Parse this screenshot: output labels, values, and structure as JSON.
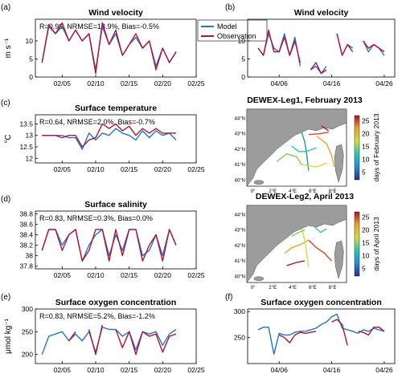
{
  "colors": {
    "model": "#1f77c4",
    "observation": "#b5123a",
    "land": "#9c9c9c"
  },
  "legend": {
    "model_label": "Model",
    "observation_label": "Observation"
  },
  "chart_data": [
    {
      "panel": "(a)",
      "type": "line",
      "title": "Wind velocity",
      "ylabel": "m s⁻¹",
      "stats": "R=0.96, NRMSE=13.9%, Bias=-0.5%",
      "xlim": [
        "2013-02-01",
        "2013-02-25"
      ],
      "ylim": [
        0,
        16
      ],
      "xticks": [
        "02/05",
        "02/10",
        "02/15",
        "02/20",
        "02/25"
      ],
      "yticks": [
        0,
        5,
        10
      ],
      "x": [
        "2013-02-02",
        "2013-02-03",
        "2013-02-04",
        "2013-02-05",
        "2013-02-06",
        "2013-02-07",
        "2013-02-08",
        "2013-02-09",
        "2013-02-10",
        "2013-02-11",
        "2013-02-12",
        "2013-02-13",
        "2013-02-14",
        "2013-02-15",
        "2013-02-16",
        "2013-02-17",
        "2013-02-18",
        "2013-02-19",
        "2013-02-20",
        "2013-02-21",
        "2013-02-22"
      ],
      "series": [
        {
          "name": "Model",
          "values": [
            4,
            14,
            12,
            14,
            10,
            13,
            10,
            12,
            2,
            14,
            9,
            12,
            6,
            9,
            11,
            8,
            10,
            3,
            8,
            4,
            7
          ]
        },
        {
          "name": "Observation",
          "values": [
            4,
            14.5,
            12,
            15,
            10,
            13,
            10,
            12,
            1,
            15,
            9,
            13,
            6,
            9,
            12,
            8,
            10,
            2,
            8,
            4,
            7
          ]
        }
      ]
    },
    {
      "panel": "(b)",
      "type": "line",
      "title": "Wind velocity",
      "xlim": [
        "2013-03-31",
        "2013-04-28"
      ],
      "ylim": [
        0,
        16
      ],
      "xticks": [
        "04/06",
        "04/16",
        "04/26"
      ],
      "yticks": [
        0,
        5,
        10
      ],
      "x": [
        "2013-04-02",
        "2013-04-03",
        "2013-04-04",
        "2013-04-05",
        "2013-04-06",
        "2013-04-07",
        "2013-04-08",
        "2013-04-09",
        "2013-04-10",
        "2013-04-11",
        "2013-04-12",
        "2013-04-13",
        "2013-04-14",
        "2013-04-15",
        "2013-04-16",
        "2013-04-17",
        "2013-04-18",
        "2013-04-19",
        "2013-04-20",
        "2013-04-21",
        "2013-04-22",
        "2013-04-23",
        "2013-04-24",
        "2013-04-25",
        "2013-04-26"
      ],
      "series": [
        {
          "name": "Model",
          "values": [
            8,
            6,
            12,
            8,
            7,
            12,
            6,
            11,
            3,
            null,
            2,
            3,
            1,
            3,
            null,
            12,
            6,
            9,
            8,
            null,
            10,
            7,
            9,
            8,
            6
          ]
        },
        {
          "name": "Observation",
          "values": [
            8,
            6,
            13,
            7,
            7,
            11,
            6,
            10,
            4,
            null,
            2,
            4,
            1,
            2,
            null,
            12,
            6,
            9,
            7,
            null,
            10,
            8,
            9,
            8,
            7
          ]
        }
      ]
    },
    {
      "panel": "(c)",
      "type": "line",
      "title": "Surface temperature",
      "ylabel": "°C",
      "stats": "R=0.64, NRMSE=2.0%, Bias=-0.7%",
      "xlim": [
        "2013-02-01",
        "2013-02-25"
      ],
      "ylim": [
        11.8,
        13.9
      ],
      "xticks": [
        "02/05",
        "02/10",
        "02/15",
        "02/20",
        "02/25"
      ],
      "yticks": [
        12,
        12.5,
        13,
        13.5
      ],
      "x": [
        "2013-02-02",
        "2013-02-03",
        "2013-02-04",
        "2013-02-05",
        "2013-02-06",
        "2013-02-07",
        "2013-02-08",
        "2013-02-09",
        "2013-02-10",
        "2013-02-11",
        "2013-02-12",
        "2013-02-13",
        "2013-02-14",
        "2013-02-15",
        "2013-02-16",
        "2013-02-17",
        "2013-02-18",
        "2013-02-19",
        "2013-02-20",
        "2013-02-21",
        "2013-02-22"
      ],
      "series": [
        {
          "name": "Model",
          "values": [
            13,
            13,
            13,
            13,
            12.9,
            12.9,
            12.4,
            13.1,
            12.8,
            13.1,
            13.0,
            13.3,
            13.1,
            13.0,
            12.8,
            13.2,
            12.9,
            13.2,
            13.0,
            13.1,
            12.8
          ]
        },
        {
          "name": "Observation",
          "values": [
            13,
            13,
            13,
            12.9,
            13.0,
            13.0,
            12.5,
            12.8,
            12.9,
            13.5,
            13.3,
            13.5,
            13.2,
            13.4,
            13.0,
            13.3,
            13.1,
            13.3,
            13.1,
            13.1,
            13.1
          ]
        }
      ]
    },
    {
      "panel": "(d)",
      "type": "line",
      "title": "Surface salinity",
      "stats": "R=0.83, NRMSE=0.3%, Bias=0.0%",
      "xlim": [
        "2013-02-01",
        "2013-02-25"
      ],
      "ylim": [
        37.75,
        38.85
      ],
      "xticks": [
        "02/05",
        "02/10",
        "02/15",
        "02/20",
        "02/25"
      ],
      "yticks": [
        37.8,
        38,
        38.2,
        38.4,
        38.6,
        38.8
      ],
      "x": [
        "2013-02-02",
        "2013-02-03",
        "2013-02-04",
        "2013-02-05",
        "2013-02-06",
        "2013-02-07",
        "2013-02-08",
        "2013-02-09",
        "2013-02-10",
        "2013-02-11",
        "2013-02-12",
        "2013-02-13",
        "2013-02-14",
        "2013-02-15",
        "2013-02-16",
        "2013-02-17",
        "2013-02-18",
        "2013-02-19",
        "2013-02-20",
        "2013-02-21",
        "2013-02-22"
      ],
      "series": [
        {
          "name": "Model",
          "values": [
            38.1,
            38.5,
            38.5,
            38.2,
            38.4,
            38.5,
            37.9,
            38.2,
            38.4,
            38.5,
            38.0,
            38.4,
            38.1,
            38.5,
            38.5,
            38.0,
            38.1,
            38.4,
            38.0,
            38.5,
            38.2
          ]
        },
        {
          "name": "Observation",
          "values": [
            38.1,
            38.5,
            38.5,
            38.1,
            38.4,
            38.5,
            37.9,
            38.1,
            38.5,
            38.5,
            37.9,
            38.5,
            38.0,
            38.5,
            38.5,
            37.9,
            38.2,
            38.4,
            37.9,
            38.5,
            38.2
          ]
        }
      ]
    },
    {
      "panel": "(e)",
      "type": "line",
      "title": "Surface oxygen concentration",
      "ylabel": "μmol kg⁻¹",
      "stats": "R=0.83, NRMSE=5.2%, Bias=-1.2%",
      "xlim": [
        "2013-02-01",
        "2013-02-25"
      ],
      "ylim": [
        180,
        300
      ],
      "xticks": [
        "02/05",
        "02/10",
        "02/15",
        "02/20",
        "02/25"
      ],
      "yticks": [
        200,
        250,
        300
      ],
      "x": [
        "2013-02-02",
        "2013-02-03",
        "2013-02-04",
        "2013-02-05",
        "2013-02-06",
        "2013-02-07",
        "2013-02-08",
        "2013-02-09",
        "2013-02-10",
        "2013-02-11",
        "2013-02-12",
        "2013-02-13",
        "2013-02-14",
        "2013-02-15",
        "2013-02-16",
        "2013-02-17",
        "2013-02-18",
        "2013-02-19",
        "2013-02-20",
        "2013-02-21",
        "2013-02-22"
      ],
      "series": [
        {
          "name": "Model",
          "values": [
            200,
            240,
            245,
            250,
            230,
            245,
            230,
            250,
            205,
            260,
            255,
            255,
            240,
            250,
            210,
            250,
            245,
            250,
            220,
            245,
            255
          ]
        },
        {
          "name": "Observation",
          "values": [
            null,
            null,
            null,
            null,
            230,
            250,
            null,
            255,
            200,
            265,
            null,
            255,
            215,
            250,
            200,
            250,
            240,
            245,
            205,
            240,
            245
          ]
        }
      ]
    },
    {
      "panel": "(f)",
      "type": "line",
      "title": "Surface oxygen concentration",
      "xlim": [
        "2013-03-31",
        "2013-04-28"
      ],
      "ylim": [
        200,
        305
      ],
      "xticks": [
        "04/06",
        "04/16",
        "04/26"
      ],
      "yticks": [
        250,
        300
      ],
      "x": [
        "2013-04-02",
        "2013-04-03",
        "2013-04-04",
        "2013-04-05",
        "2013-04-06",
        "2013-04-07",
        "2013-04-08",
        "2013-04-09",
        "2013-04-10",
        "2013-04-11",
        "2013-04-12",
        "2013-04-13",
        "2013-04-14",
        "2013-04-15",
        "2013-04-16",
        "2013-04-17",
        "2013-04-18",
        "2013-04-19",
        "2013-04-20",
        "2013-04-21",
        "2013-04-22",
        "2013-04-23",
        "2013-04-24",
        "2013-04-25",
        "2013-04-26"
      ],
      "series": [
        {
          "name": "Model",
          "values": [
            265,
            270,
            270,
            218,
            258,
            255,
            255,
            260,
            262,
            262,
            265,
            268,
            275,
            280,
            290,
            295,
            268,
            265,
            262,
            258,
            265,
            262,
            268,
            265,
            262
          ]
        },
        {
          "name": "Observation",
          "values": [
            null,
            null,
            null,
            null,
            255,
            250,
            240,
            255,
            260,
            258,
            260,
            262,
            null,
            null,
            280,
            285,
            275,
            235,
            null,
            262,
            260,
            255,
            270,
            270,
            262
          ]
        }
      ]
    },
    {
      "type": "map",
      "title": "DEWEX-Leg1, February 2013",
      "colorbar_label": "days of February 2013",
      "colorbar_ticks": [
        5,
        10,
        15,
        20,
        25
      ],
      "lat_ticks": [
        "40°N",
        "41°N",
        "42°N",
        "43°N",
        "44°N"
      ],
      "lon_ticks": [
        "0°",
        "2°E",
        "4°E",
        "6°E",
        "8°E"
      ]
    },
    {
      "type": "map",
      "title": "DEWEX-Leg2, April 2013",
      "colorbar_label": "days of April 2013",
      "colorbar_ticks": [
        5,
        10,
        15,
        20,
        25
      ],
      "lat_ticks": [
        "40°N",
        "41°N",
        "42°N",
        "43°N",
        "44°N"
      ],
      "lon_ticks": [
        "0°",
        "2°E",
        "4°E",
        "6°E",
        "8°E"
      ]
    }
  ]
}
